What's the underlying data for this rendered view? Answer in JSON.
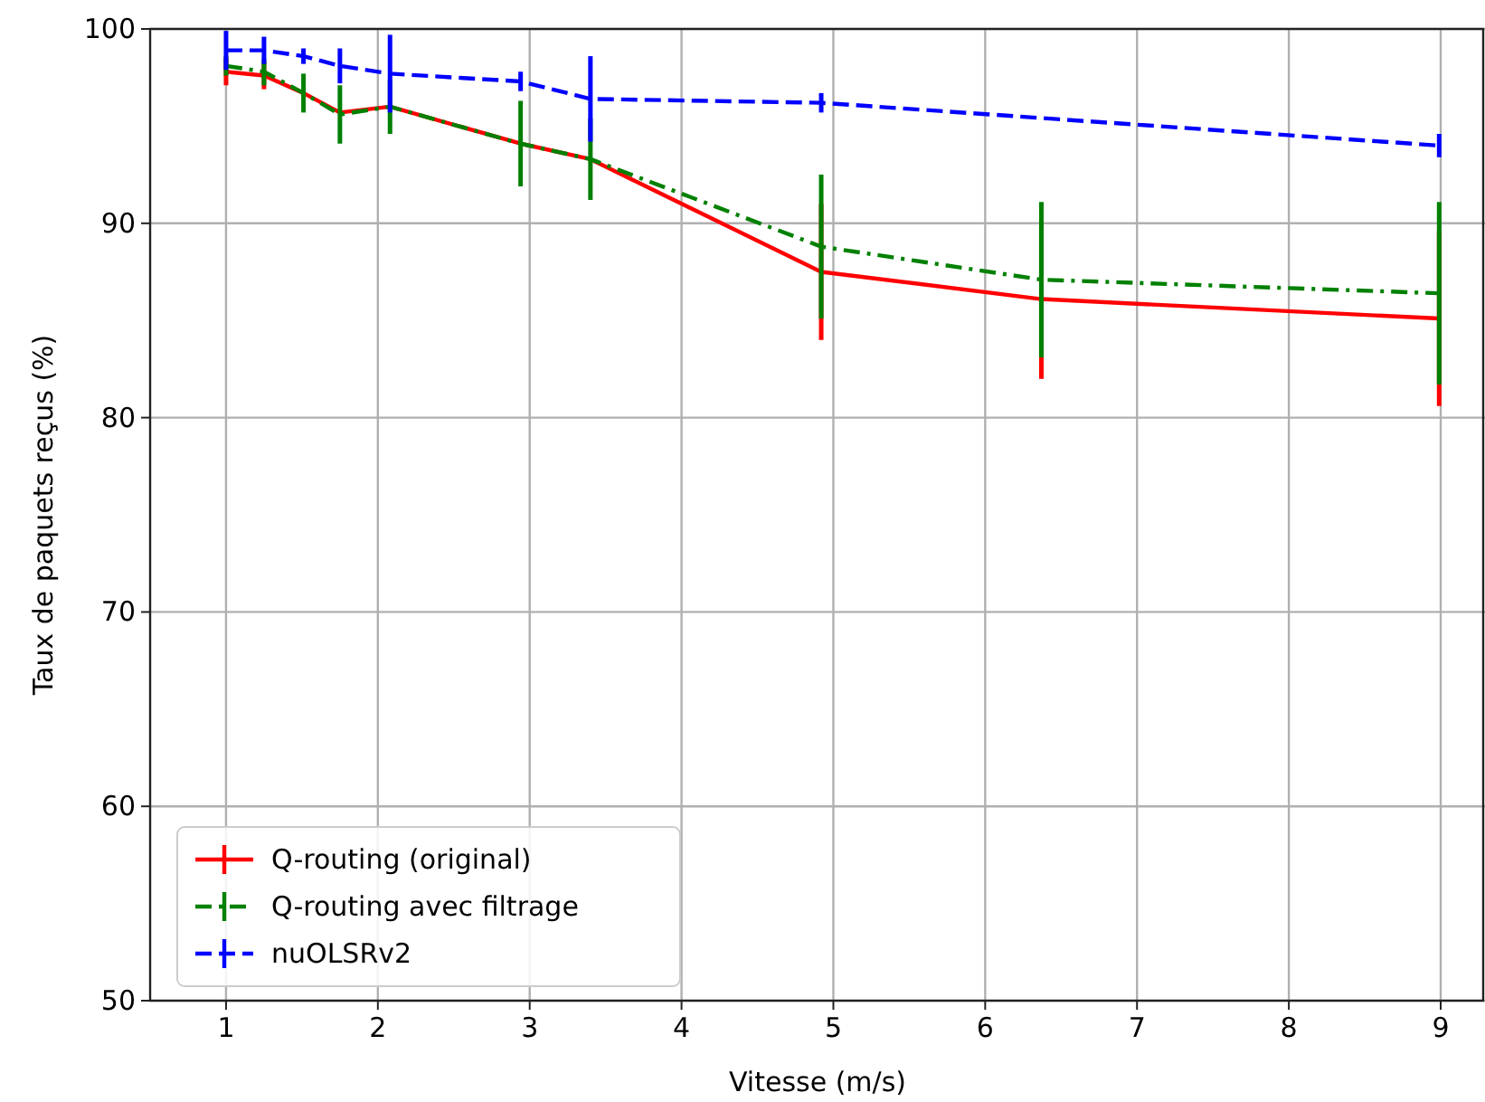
{
  "chart_data": {
    "type": "line",
    "xlabel": "Vitesse (m/s)",
    "ylabel": "Taux de paquets reçus (%)",
    "x": [
      1.0,
      1.25,
      1.51,
      1.75,
      2.08,
      2.94,
      3.4,
      4.92,
      6.37,
      8.99
    ],
    "xlim": [
      0.5,
      9.28
    ],
    "xticks": [
      1,
      2,
      3,
      4,
      5,
      6,
      7,
      8,
      9
    ],
    "ylim": [
      50,
      100
    ],
    "yticks": [
      50,
      60,
      70,
      80,
      90,
      100
    ],
    "grid": true,
    "legend": "bottom left",
    "marker": "none",
    "series": [
      {
        "name": "Q-routing (original)",
        "color": "#ff0000",
        "line_style": "solid",
        "values": [
          97.8,
          97.6,
          96.7,
          95.7,
          96.0,
          94.1,
          93.3,
          87.5,
          86.1,
          85.1
        ],
        "errors": [
          0.7,
          0.7,
          null,
          null,
          null,
          null,
          null,
          3.5,
          4.1,
          4.5
        ]
      },
      {
        "name": "Q-routing avec filtrage",
        "color": "#008000",
        "line_style": "dashdot",
        "values": [
          98.1,
          97.8,
          96.7,
          95.6,
          96.0,
          94.1,
          93.3,
          88.8,
          87.1,
          86.4
        ],
        "errors": [
          0.5,
          0.7,
          1.0,
          1.5,
          1.4,
          2.2,
          2.1,
          3.7,
          4.0,
          4.7
        ]
      },
      {
        "name": "nuOLSRv2",
        "color": "#0000ff",
        "line_style": "dashed",
        "values": [
          98.9,
          98.9,
          98.6,
          98.1,
          97.7,
          97.3,
          96.4,
          96.2,
          null,
          94.0
        ],
        "errors": [
          1.0,
          0.7,
          0.4,
          0.9,
          2.0,
          0.5,
          2.2,
          0.5,
          null,
          0.6
        ]
      }
    ]
  }
}
